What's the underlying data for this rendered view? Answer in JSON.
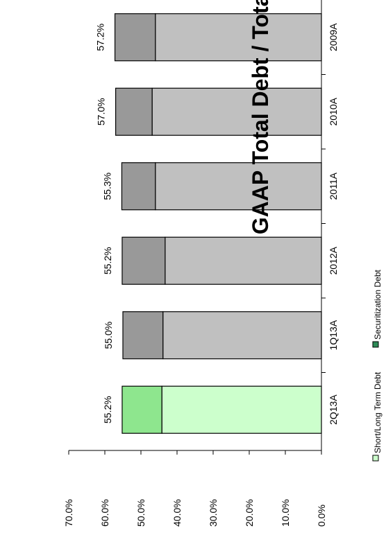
{
  "chart_data": {
    "type": "bar",
    "stacked": true,
    "orientation": "rotated-90",
    "title": "GAAP Total Debt / Total Capitalization",
    "categories": [
      "2009A",
      "2010A",
      "2011A",
      "2012A",
      "1Q13A",
      "2Q13A"
    ],
    "series": [
      {
        "name": "Short/Long Term Debt",
        "values": [
          46.0,
          46.9,
          46.0,
          43.3,
          43.9,
          44.2
        ]
      },
      {
        "name": "Securitization Debt",
        "values": [
          11.2,
          10.1,
          9.3,
          11.9,
          11.1,
          11.0
        ]
      }
    ],
    "totals": [
      57.2,
      57.0,
      55.3,
      55.2,
      55.0,
      55.2
    ],
    "data_labels": [
      "57.2%",
      "57.0%",
      "55.3%",
      "55.2%",
      "55.0%",
      "55.2%"
    ],
    "ylim": [
      0,
      70
    ],
    "yticks": [
      0,
      10,
      20,
      30,
      40,
      50,
      60,
      70
    ],
    "ytick_labels": [
      "0.0%",
      "10.0%",
      "20.0%",
      "30.0%",
      "40.0%",
      "50.0%",
      "60.0%",
      "70.0%"
    ],
    "grid": false,
    "legend_position": "right",
    "colors": {
      "base_fill": "#c0c0c0",
      "secur_fill": "#999999",
      "highlight_base_fill": "#ccffcc",
      "highlight_secur_fill": "#8ee68e",
      "legend_secur_swatch": "#2e8b57",
      "legend_base_swatch": "#ccffcc"
    },
    "highlight_index": 5
  }
}
